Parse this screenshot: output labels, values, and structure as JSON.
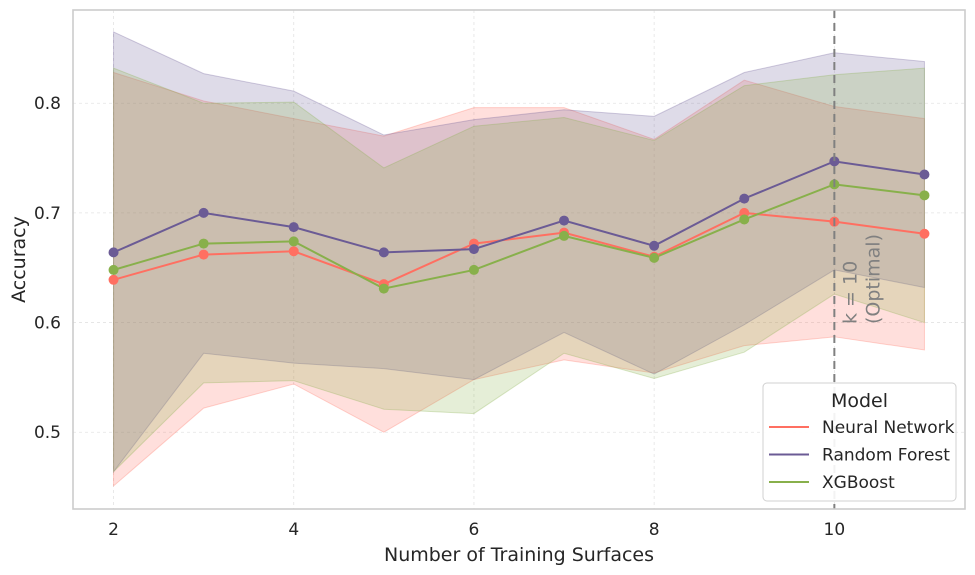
{
  "chart_data": {
    "type": "line",
    "xlabel": "Number of Training Surfaces",
    "ylabel": "Accuracy",
    "xlim": [
      1.55,
      11.45
    ],
    "ylim": [
      0.43,
      0.885
    ],
    "xticks": [
      2,
      4,
      6,
      8,
      10
    ],
    "yticks": [
      0.5,
      0.6,
      0.7,
      0.8
    ],
    "ytick_labels": [
      "0.5",
      "0.6",
      "0.7",
      "0.8"
    ],
    "grid": true,
    "x": [
      2,
      3,
      4,
      5,
      6,
      7,
      8,
      9,
      10,
      11
    ],
    "series": [
      {
        "name": "Neural Network",
        "color": "#ff6f61",
        "values": [
          0.639,
          0.662,
          0.665,
          0.635,
          0.672,
          0.682,
          0.66,
          0.7,
          0.692,
          0.681
        ],
        "upper": [
          0.828,
          0.802,
          0.786,
          0.77,
          0.796,
          0.796,
          0.767,
          0.821,
          0.797,
          0.786
        ],
        "lower": [
          0.451,
          0.522,
          0.544,
          0.5,
          0.548,
          0.566,
          0.554,
          0.579,
          0.587,
          0.575
        ]
      },
      {
        "name": "Random Forest",
        "color": "#6b5b95",
        "values": [
          0.664,
          0.7,
          0.687,
          0.664,
          0.667,
          0.693,
          0.67,
          0.713,
          0.747,
          0.735
        ],
        "upper": [
          0.865,
          0.827,
          0.811,
          0.771,
          0.785,
          0.794,
          0.788,
          0.828,
          0.846,
          0.838
        ],
        "lower": [
          0.464,
          0.572,
          0.563,
          0.558,
          0.548,
          0.591,
          0.553,
          0.598,
          0.648,
          0.632
        ]
      },
      {
        "name": "XGBoost",
        "color": "#88b04b",
        "values": [
          0.648,
          0.672,
          0.674,
          0.631,
          0.648,
          0.679,
          0.659,
          0.694,
          0.726,
          0.716
        ],
        "upper": [
          0.832,
          0.8,
          0.801,
          0.741,
          0.779,
          0.787,
          0.766,
          0.816,
          0.826,
          0.832
        ],
        "lower": [
          0.464,
          0.545,
          0.547,
          0.521,
          0.517,
          0.572,
          0.549,
          0.573,
          0.626,
          0.6
        ]
      }
    ],
    "vline": {
      "x": 10,
      "color": "#808080",
      "label_line1": "k = 10",
      "label_line2": "(Optimal)"
    },
    "legend": {
      "title": "Model",
      "location": "lower-right"
    }
  }
}
